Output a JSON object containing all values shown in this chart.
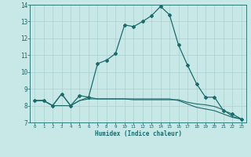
{
  "xlabel": "Humidex (Indice chaleur)",
  "bg_color": "#c8e8e8",
  "grid_color": "#a8d0d0",
  "line_color": "#1a6b6b",
  "xlim": [
    -0.5,
    23.5
  ],
  "ylim": [
    7,
    14
  ],
  "xticks": [
    0,
    1,
    2,
    3,
    4,
    5,
    6,
    7,
    8,
    9,
    10,
    11,
    12,
    13,
    14,
    15,
    16,
    17,
    18,
    19,
    20,
    21,
    22,
    23
  ],
  "yticks": [
    7,
    8,
    9,
    10,
    11,
    12,
    13,
    14
  ],
  "series1_x": [
    0,
    1,
    2,
    3,
    4,
    5,
    6,
    7,
    8,
    9,
    10,
    11,
    12,
    13,
    14,
    15,
    16,
    17,
    18,
    19,
    20,
    21,
    22,
    23
  ],
  "series1_y": [
    8.3,
    8.3,
    8.0,
    8.7,
    8.0,
    8.6,
    8.5,
    10.5,
    10.7,
    11.1,
    12.8,
    12.7,
    13.0,
    13.35,
    13.9,
    13.4,
    11.6,
    10.4,
    9.3,
    8.5,
    8.5,
    7.7,
    7.5,
    7.2
  ],
  "series2_x": [
    0,
    1,
    2,
    3,
    4,
    5,
    6,
    7,
    8,
    9,
    10,
    11,
    12,
    13,
    14,
    15,
    16,
    17,
    18,
    19,
    20,
    21,
    22,
    23
  ],
  "series2_y": [
    8.3,
    8.3,
    8.0,
    8.0,
    8.0,
    8.3,
    8.5,
    8.4,
    8.4,
    8.4,
    8.4,
    8.35,
    8.35,
    8.35,
    8.35,
    8.35,
    8.35,
    8.2,
    8.1,
    8.05,
    7.95,
    7.75,
    7.35,
    7.2
  ],
  "series3_x": [
    0,
    1,
    2,
    3,
    4,
    5,
    6,
    7,
    8,
    9,
    10,
    11,
    12,
    13,
    14,
    15,
    16,
    17,
    18,
    19,
    20,
    21,
    22,
    23
  ],
  "series3_y": [
    8.3,
    8.3,
    8.0,
    8.7,
    8.0,
    8.3,
    8.4,
    8.4,
    8.4,
    8.4,
    8.4,
    8.4,
    8.4,
    8.4,
    8.4,
    8.4,
    8.3,
    8.1,
    7.9,
    7.8,
    7.7,
    7.5,
    7.3,
    7.2
  ]
}
